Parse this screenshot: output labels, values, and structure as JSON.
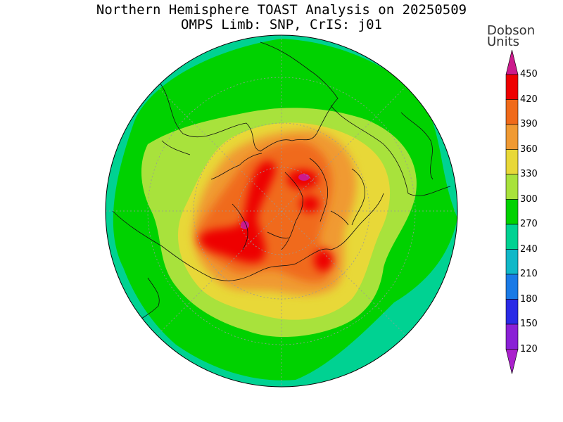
{
  "title": {
    "line1": "Northern Hemisphere TOAST Analysis on 20250509",
    "line2": "OMPS Limb: SNP, CrIS: j01"
  },
  "colorbar": {
    "units_line1": "Dobson",
    "units_line2": "Units",
    "labels": [
      "450",
      "420",
      "390",
      "360",
      "330",
      "300",
      "270",
      "240",
      "210",
      "180",
      "150",
      "120"
    ],
    "bins": [
      {
        "label": "above 450",
        "color": "#cc1a8c"
      },
      {
        "label": "420-450",
        "color": "#ee0000"
      },
      {
        "label": "390-420",
        "color": "#f06a1a"
      },
      {
        "label": "360-390",
        "color": "#f09a33"
      },
      {
        "label": "330-360",
        "color": "#e8d838"
      },
      {
        "label": "300-330",
        "color": "#a8e23c"
      },
      {
        "label": "270-300",
        "color": "#00d200"
      },
      {
        "label": "240-270",
        "color": "#00d292"
      },
      {
        "label": "210-240",
        "color": "#10b8c8"
      },
      {
        "label": "180-210",
        "color": "#1a7ae6"
      },
      {
        "label": "150-180",
        "color": "#2a2ae6"
      },
      {
        "label": "120-150",
        "color": "#8a20d6"
      },
      {
        "label": "below 120",
        "color": "#aa20cc"
      }
    ]
  },
  "map": {
    "projection": "north-polar-stereographic",
    "background_color": "#00d292"
  }
}
